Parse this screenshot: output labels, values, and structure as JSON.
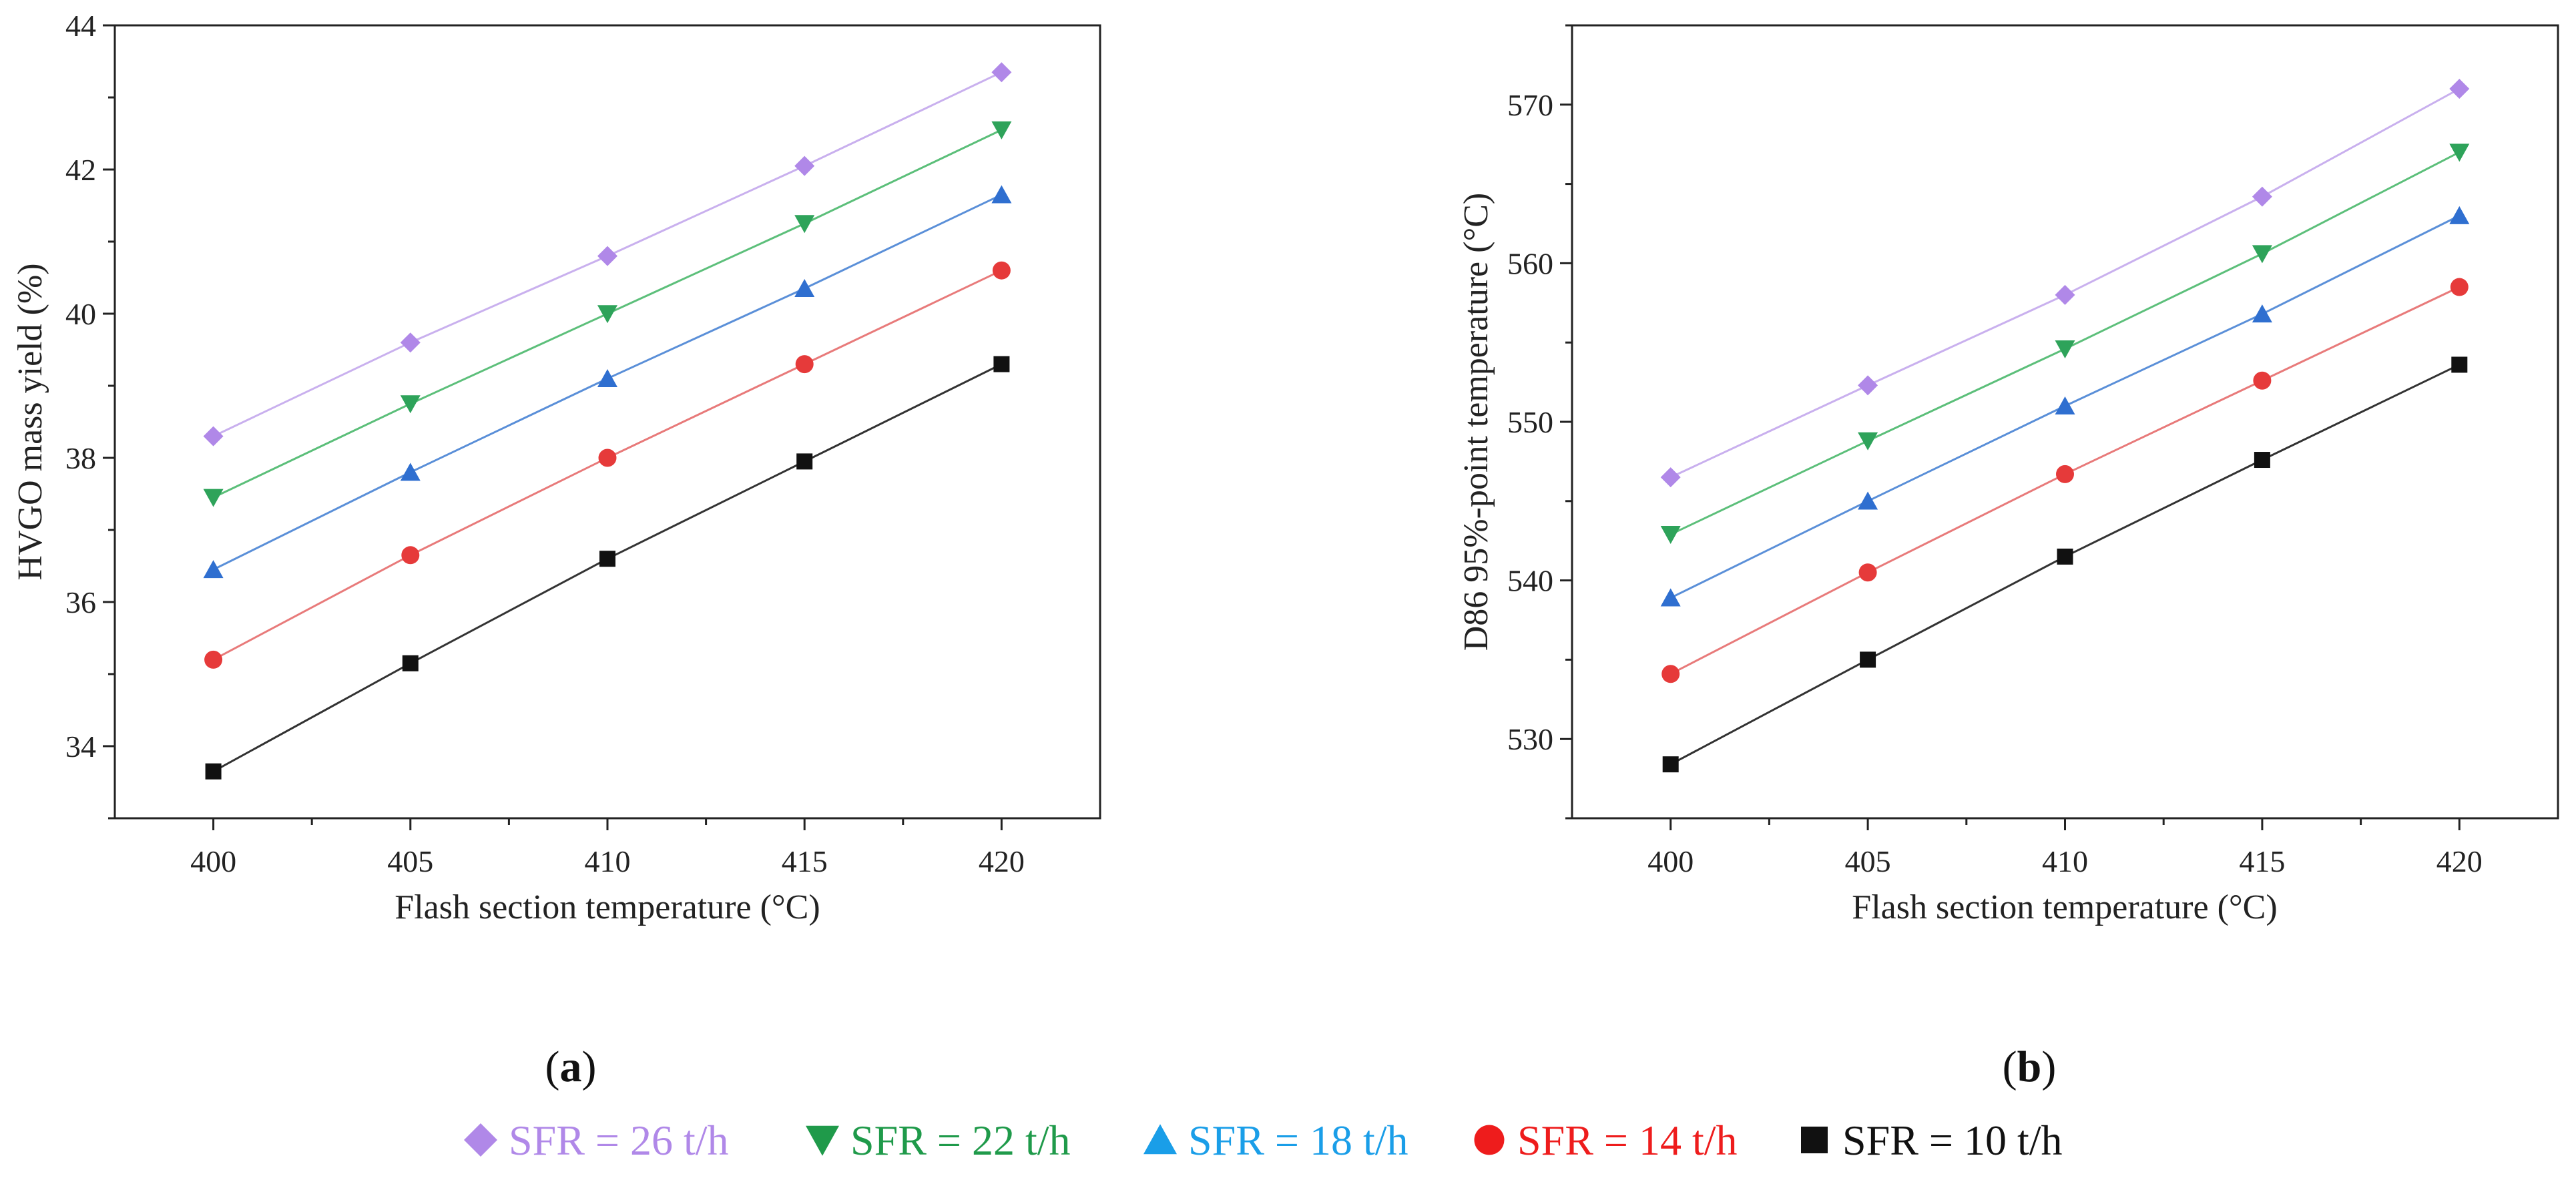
{
  "chart_data": [
    {
      "type": "line",
      "panel_label": "a",
      "xlabel": "Flash section temperature (°C)",
      "ylabel": "HVGO mass yield (%)",
      "x": [
        400,
        405,
        410,
        415,
        420
      ],
      "xlim": [
        397.5,
        422.5
      ],
      "ylim": [
        33,
        44
      ],
      "xticks": [
        "400",
        "405",
        "410",
        "415",
        "420"
      ],
      "yticks": [
        "34",
        "36",
        "38",
        "40",
        "42",
        "44"
      ],
      "series": [
        {
          "name": "SFR = 26 t/h",
          "color": "#b088e8",
          "line_color": "#c9b0ee",
          "marker": "diamond",
          "values": [
            38.3,
            39.6,
            40.8,
            42.05,
            43.35
          ]
        },
        {
          "name": "SFR = 22 t/h",
          "color": "#2ea35a",
          "line_color": "#5cbf7a",
          "marker": "triangle-down",
          "values": [
            37.45,
            38.75,
            40.0,
            41.25,
            42.55
          ]
        },
        {
          "name": "SFR = 18 t/h",
          "color": "#2f6fd0",
          "line_color": "#5a8fd8",
          "marker": "triangle-up",
          "values": [
            36.45,
            37.8,
            39.1,
            40.35,
            41.65
          ]
        },
        {
          "name": "SFR = 14 t/h",
          "color": "#e63a3a",
          "line_color": "#e87a7a",
          "marker": "circle",
          "values": [
            35.2,
            36.65,
            38.0,
            39.3,
            40.6
          ]
        },
        {
          "name": "SFR = 10 t/h",
          "color": "#111111",
          "line_color": "#333333",
          "marker": "square",
          "values": [
            33.65,
            35.15,
            36.6,
            37.95,
            39.3
          ]
        }
      ]
    },
    {
      "type": "line",
      "panel_label": "b",
      "xlabel": "Flash section temperature (°C)",
      "ylabel": "D86 95%-point temperature (°C)",
      "x": [
        400,
        405,
        410,
        415,
        420
      ],
      "xlim": [
        397.5,
        422.5
      ],
      "ylim": [
        525,
        575
      ],
      "xticks": [
        "400",
        "405",
        "410",
        "415",
        "420"
      ],
      "yticks": [
        "530",
        "540",
        "550",
        "560",
        "570"
      ],
      "series": [
        {
          "name": "SFR = 26 t/h",
          "color": "#b088e8",
          "line_color": "#c9b0ee",
          "marker": "diamond",
          "values": [
            546.5,
            552.3,
            558.0,
            564.2,
            571.0
          ]
        },
        {
          "name": "SFR = 22 t/h",
          "color": "#2ea35a",
          "line_color": "#5cbf7a",
          "marker": "triangle-down",
          "values": [
            542.9,
            548.8,
            554.6,
            560.6,
            567.0
          ]
        },
        {
          "name": "SFR = 18 t/h",
          "color": "#2f6fd0",
          "line_color": "#5a8fd8",
          "marker": "triangle-up",
          "values": [
            538.9,
            545.0,
            551.0,
            556.8,
            563.0
          ]
        },
        {
          "name": "SFR = 14 t/h",
          "color": "#e63a3a",
          "line_color": "#e87a7a",
          "marker": "circle",
          "values": [
            534.1,
            540.5,
            546.7,
            552.6,
            558.5
          ]
        },
        {
          "name": "SFR = 10 t/h",
          "color": "#111111",
          "line_color": "#333333",
          "marker": "square",
          "values": [
            528.4,
            535.0,
            541.5,
            547.6,
            553.6
          ]
        }
      ]
    }
  ],
  "legend": [
    {
      "label": "SFR = 26 t/h",
      "marker": "diamond",
      "color": "#b088e8",
      "text_color": "#b088e8"
    },
    {
      "label": "SFR = 22 t/h",
      "marker": "triangle-down",
      "color": "#1f9a4a",
      "text_color": "#1f9a4a"
    },
    {
      "label": "SFR = 18 t/h",
      "marker": "triangle-up",
      "color": "#1a9ee8",
      "text_color": "#1a9ee8"
    },
    {
      "label": "SFR = 14 t/h",
      "marker": "circle",
      "color": "#ee1c1c",
      "text_color": "#ee1c1c"
    },
    {
      "label": "SFR = 10 t/h",
      "marker": "square",
      "color": "#111111",
      "text_color": "#111111"
    }
  ]
}
